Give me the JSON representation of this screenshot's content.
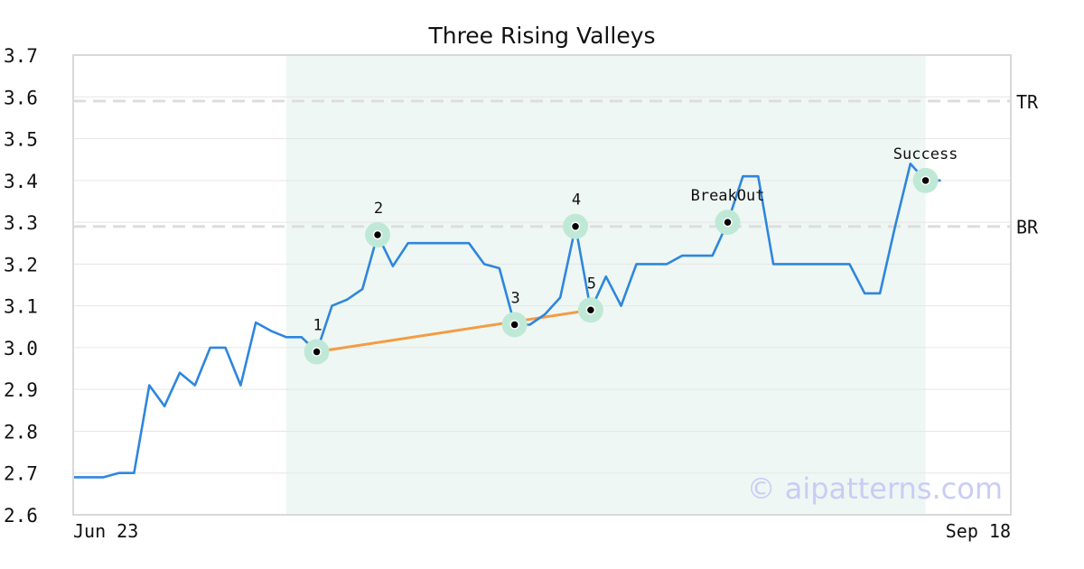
{
  "chart_data": {
    "type": "line",
    "title": "Three Rising Valleys",
    "ylim": [
      2.6,
      3.7
    ],
    "yticks": [
      "3.7",
      "3.6",
      "3.5",
      "3.4",
      "3.3",
      "3.2",
      "3.1",
      "3.0",
      "2.9",
      "2.8",
      "2.7",
      "2.6"
    ],
    "xtick_labels": [
      "Jun 23",
      "Sep 18"
    ],
    "grid": true,
    "colors": {
      "price_line": "#2e86de",
      "valley_line": "#f39c44",
      "highlight": "#eef7f3",
      "marker_halo": "#bfe9d6",
      "reference_line": "#dddddd"
    },
    "series": [
      {
        "values": [
          2.69,
          2.69,
          2.69,
          2.7,
          2.7,
          2.91,
          2.86,
          2.94,
          2.91,
          3.0,
          3.0,
          2.91,
          3.06,
          3.04,
          3.025,
          3.025,
          2.99,
          3.1,
          3.115,
          3.14,
          3.27,
          3.195,
          3.25,
          3.25,
          3.25,
          3.25,
          3.25,
          3.2,
          3.19,
          3.055,
          3.055,
          3.08,
          3.12,
          3.29,
          3.09,
          3.17,
          3.1,
          3.2,
          3.2,
          3.2,
          3.22,
          3.22,
          3.22,
          3.3,
          3.41,
          3.41,
          3.2,
          3.2,
          3.2,
          3.2,
          3.2,
          3.2,
          3.13,
          3.13,
          3.29,
          3.44,
          3.4,
          3.4
        ]
      }
    ],
    "highlight_range": {
      "start_index": 14,
      "end_index": 56
    },
    "reference_lines": [
      {
        "label": "TR",
        "value": 3.59
      },
      {
        "label": "BR",
        "value": 3.29
      }
    ],
    "valley_trendline": {
      "from_index": 16,
      "to_index": 34,
      "from_value": 2.99,
      "to_value": 3.09
    },
    "points": [
      {
        "label": "1",
        "index": 16,
        "value": 2.99
      },
      {
        "label": "2",
        "index": 20,
        "value": 3.27
      },
      {
        "label": "3",
        "index": 29,
        "value": 3.055
      },
      {
        "label": "4",
        "index": 33,
        "value": 3.29
      },
      {
        "label": "5",
        "index": 34,
        "value": 3.09
      },
      {
        "label": "BreakOut",
        "index": 43,
        "value": 3.3
      },
      {
        "label": "Success",
        "index": 56,
        "value": 3.4
      }
    ]
  },
  "watermark": "© aipatterns.com"
}
